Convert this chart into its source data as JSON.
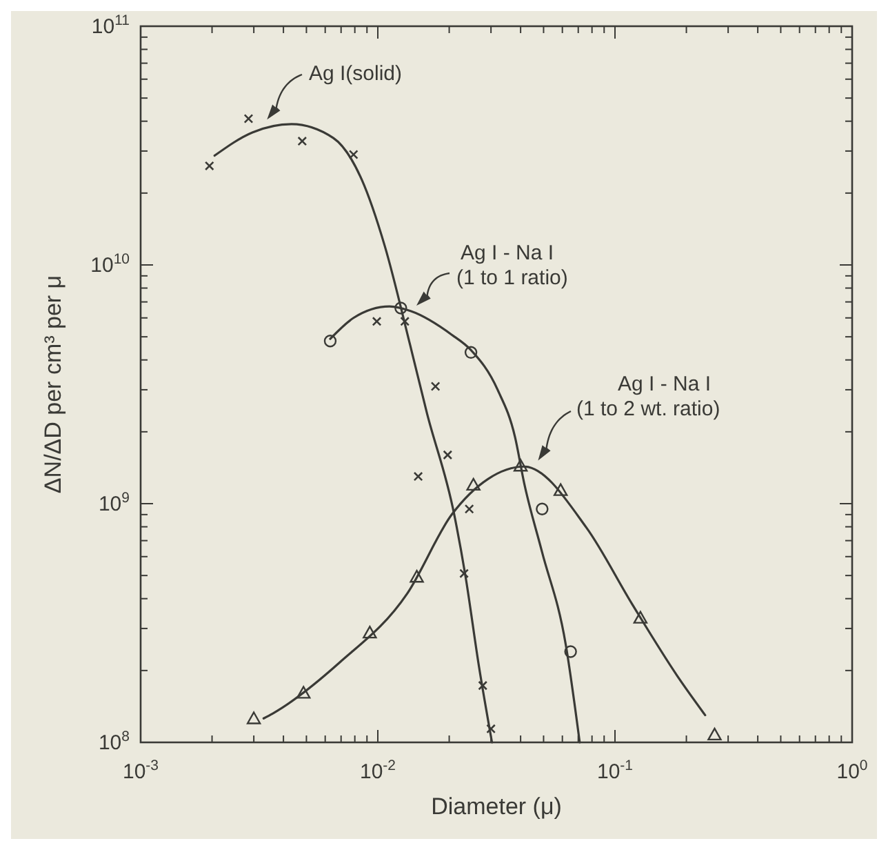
{
  "chart_data": {
    "type": "scatter",
    "xlabel": "Diameter (μ)",
    "ylabel": "ΔN/ΔD per cm³ per μ",
    "log": "xy",
    "grid": false,
    "xlim": [
      0.001,
      1
    ],
    "ylim": [
      100000000,
      100000000000
    ],
    "xticks": [
      {
        "value": 0.001,
        "label": "10$^{-3}$"
      },
      {
        "value": 0.002,
        "label": null
      },
      {
        "value": 0.003,
        "label": null
      },
      {
        "value": 0.004,
        "label": null
      },
      {
        "value": 0.005,
        "label": null
      },
      {
        "value": 0.006,
        "label": null
      },
      {
        "value": 0.007,
        "label": null
      },
      {
        "value": 0.008,
        "label": null
      },
      {
        "value": 0.009,
        "label": null
      },
      {
        "value": 0.01,
        "label": "10$^{-2}$"
      },
      {
        "value": 0.02,
        "label": null
      },
      {
        "value": 0.03,
        "label": null
      },
      {
        "value": 0.04,
        "label": null
      },
      {
        "value": 0.05,
        "label": null
      },
      {
        "value": 0.06,
        "label": null
      },
      {
        "value": 0.07,
        "label": null
      },
      {
        "value": 0.08,
        "label": null
      },
      {
        "value": 0.09,
        "label": null
      },
      {
        "value": 0.1,
        "label": "10$^{-1}$"
      },
      {
        "value": 0.2,
        "label": null
      },
      {
        "value": 0.3,
        "label": null
      },
      {
        "value": 0.4,
        "label": null
      },
      {
        "value": 0.5,
        "label": null
      },
      {
        "value": 0.6,
        "label": null
      },
      {
        "value": 0.7,
        "label": null
      },
      {
        "value": 0.8,
        "label": null
      },
      {
        "value": 0.9,
        "label": null
      },
      {
        "value": 1,
        "label": "10$^{0}$"
      }
    ],
    "yticks": [
      {
        "value": 100000000,
        "label": "10$^{8}$"
      },
      {
        "value": 200000000,
        "label": null
      },
      {
        "value": 300000000,
        "label": null
      },
      {
        "value": 400000000,
        "label": null
      },
      {
        "value": 500000000,
        "label": null
      },
      {
        "value": 600000000,
        "label": null
      },
      {
        "value": 700000000,
        "label": null
      },
      {
        "value": 800000000,
        "label": null
      },
      {
        "value": 900000000,
        "label": null
      },
      {
        "value": 1000000000,
        "label": "10$^{9}$"
      },
      {
        "value": 2000000000,
        "label": null
      },
      {
        "value": 3000000000,
        "label": null
      },
      {
        "value": 4000000000,
        "label": null
      },
      {
        "value": 5000000000,
        "label": null
      },
      {
        "value": 6000000000,
        "label": null
      },
      {
        "value": 7000000000,
        "label": null
      },
      {
        "value": 8000000000,
        "label": null
      },
      {
        "value": 9000000000,
        "label": null
      },
      {
        "value": 10000000000,
        "label": "10$^{10}$"
      },
      {
        "value": 20000000000,
        "label": null
      },
      {
        "value": 30000000000,
        "label": null
      },
      {
        "value": 40000000000,
        "label": null
      },
      {
        "value": 50000000000,
        "label": null
      },
      {
        "value": 60000000000,
        "label": null
      },
      {
        "value": 70000000000,
        "label": null
      },
      {
        "value": 80000000000,
        "label": null
      },
      {
        "value": 90000000000,
        "label": null
      },
      {
        "value": 100000000000,
        "label": "10$^{11}$"
      }
    ],
    "series": [
      {
        "type": "scatter",
        "marker": "cross",
        "color": "#3a3a36",
        "x": [
          0.00195,
          0.00285,
          0.0048,
          0.0079,
          0.0099,
          0.013,
          0.0175,
          0.0197,
          0.0148,
          0.0243,
          0.0231,
          0.0277,
          0.03
        ],
        "values": [
          26000000000,
          41000000000,
          33000000000,
          29000000000,
          5800000000,
          5800000000,
          3100000000,
          1600000000,
          1300000000,
          950000000,
          510000000,
          173000000,
          114000000
        ]
      },
      {
        "type": "line",
        "marker": "none",
        "line_style": "solid",
        "color": "#3a3a36",
        "x": [
          0.00205,
          0.00296,
          0.00433,
          0.0065,
          0.00855,
          0.0107,
          0.0137,
          0.0161,
          0.021,
          0.0234,
          0.0267,
          0.0303
        ],
        "values": [
          28700000000,
          35900000000,
          38900000000,
          34000000000,
          22800000000,
          12000000000,
          4600000000,
          2400000000,
          900000000,
          500000000,
          208000000,
          100000000
        ]
      },
      {
        "type": "scatter",
        "marker": "circle",
        "color": "#3a3a36",
        "x": [
          0.0063,
          0.0125,
          0.0247,
          0.0493,
          0.065
        ],
        "values": [
          4800000000,
          6600000000,
          4300000000,
          950000000,
          240000000
        ]
      },
      {
        "type": "line",
        "marker": "none",
        "line_style": "solid",
        "color": "#3a3a36",
        "x": [
          0.0063,
          0.0079,
          0.0112,
          0.0138,
          0.0205,
          0.0247,
          0.032,
          0.0379,
          0.0414,
          0.0492,
          0.062,
          0.071
        ],
        "values": [
          4900000000,
          6000000000,
          6700000000,
          6400000000,
          5100000000,
          4400000000,
          3000000000,
          1900000000,
          1220000000,
          630000000,
          257000000,
          100000000
        ]
      },
      {
        "type": "scatter",
        "marker": "triangle",
        "color": "#3a3a36",
        "x": [
          0.003,
          0.00486,
          0.00925,
          0.0146,
          0.0253,
          0.04,
          0.059,
          0.128,
          0.263
        ],
        "values": [
          125000000,
          160000000,
          286000000,
          490000000,
          1190000000,
          1430000000,
          1130000000,
          330000000,
          107000000
        ]
      },
      {
        "type": "line",
        "marker": "none",
        "line_style": "solid",
        "color": "#3a3a36",
        "x": [
          0.0033,
          0.0036,
          0.0069,
          0.0133,
          0.0205,
          0.0292,
          0.0414,
          0.076,
          0.118,
          0.183,
          0.24
        ],
        "values": [
          126000000,
          132000000,
          216000000,
          420000000,
          900000000,
          1270000000,
          1430000000,
          790000000,
          380000000,
          190000000,
          130000000
        ]
      }
    ],
    "annotations": [
      {
        "text": "Ag I(solid)",
        "x": 0.0033,
        "y": 39000000000
      },
      {
        "text": "Ag I - Na I\n(1 to 1 ratio)",
        "x": 0.014,
        "y": 6500000000
      },
      {
        "text": "Ag I - Na I\n(1 to 2 wt. ratio)",
        "x": 0.046,
        "y": 1450000000
      }
    ]
  }
}
